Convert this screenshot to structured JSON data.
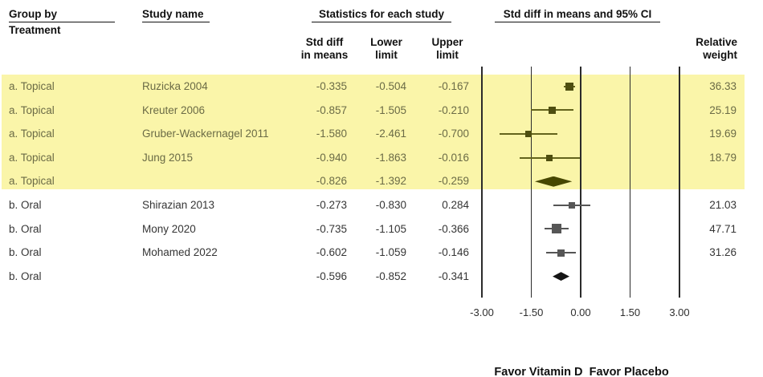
{
  "columns": {
    "group_line1": "Group by",
    "group_line2": "Treatment",
    "study": "Study name",
    "stats_group": "Statistics for each study",
    "std_diff_line1": "Std diff",
    "std_diff_line2": "in means",
    "lower_line1": "Lower",
    "lower_line2": "limit",
    "upper_line1": "Upper",
    "upper_line2": "limit",
    "plot_group": "Std diff in means and 95% CI",
    "weight_line1": "Relative",
    "weight_line2": "weight"
  },
  "chart_data": {
    "type": "forest",
    "title": "Std diff in means and 95% CI",
    "xlabel_ticks": [
      "-3.00",
      "-1.50",
      "0.00",
      "1.50",
      "3.00"
    ],
    "tick_values": [
      -3.0,
      -1.5,
      0.0,
      1.5,
      3.0
    ],
    "xlim": [
      -3.0,
      3.0
    ],
    "favor_left": "Favor Vitamin D",
    "favor_right": "Favor Placebo",
    "rows": [
      {
        "group": "a. Topical",
        "study": "Ruzicka 2004",
        "std_diff": -0.335,
        "lower": -0.504,
        "upper": -0.167,
        "weight": 36.33,
        "kind": "study",
        "highlight": true
      },
      {
        "group": "a. Topical",
        "study": "Kreuter 2006",
        "std_diff": -0.857,
        "lower": -1.505,
        "upper": -0.21,
        "weight": 25.19,
        "kind": "study",
        "highlight": true
      },
      {
        "group": "a. Topical",
        "study": "Gruber-Wackernagel 2011",
        "std_diff": -1.58,
        "lower": -2.461,
        "upper": -0.7,
        "weight": 19.69,
        "kind": "study",
        "highlight": true
      },
      {
        "group": "a. Topical",
        "study": "Jung 2015",
        "std_diff": -0.94,
        "lower": -1.863,
        "upper": -0.016,
        "weight": 18.79,
        "kind": "study",
        "highlight": true
      },
      {
        "group": "a. Topical",
        "study": "",
        "std_diff": -0.826,
        "lower": -1.392,
        "upper": -0.259,
        "weight": null,
        "kind": "summary",
        "highlight": true
      },
      {
        "group": "b. Oral",
        "study": "Shirazian 2013",
        "std_diff": -0.273,
        "lower": -0.83,
        "upper": 0.284,
        "weight": 21.03,
        "kind": "study",
        "highlight": false
      },
      {
        "group": "b. Oral",
        "study": "Mony 2020",
        "std_diff": -0.735,
        "lower": -1.105,
        "upper": -0.366,
        "weight": 47.71,
        "kind": "study",
        "highlight": false
      },
      {
        "group": "b. Oral",
        "study": "Mohamed 2022",
        "std_diff": -0.602,
        "lower": -1.059,
        "upper": -0.146,
        "weight": 31.26,
        "kind": "study",
        "highlight": false
      },
      {
        "group": "b. Oral",
        "study": "",
        "std_diff": -0.596,
        "lower": -0.852,
        "upper": -0.341,
        "weight": null,
        "kind": "summary",
        "highlight": false
      }
    ]
  },
  "colors": {
    "highlight_band": "#FAF5A9",
    "highlight_text": "#6b6b46",
    "normal_text": "#353535",
    "topical_ci_line": "#63631c",
    "topical_square": "#4e4e10",
    "topical_diamond": "#474700",
    "oral_ci_line": "#555555",
    "oral_square": "#565656",
    "oral_diamond": "#141414",
    "gridline": "#2b2b2b"
  }
}
